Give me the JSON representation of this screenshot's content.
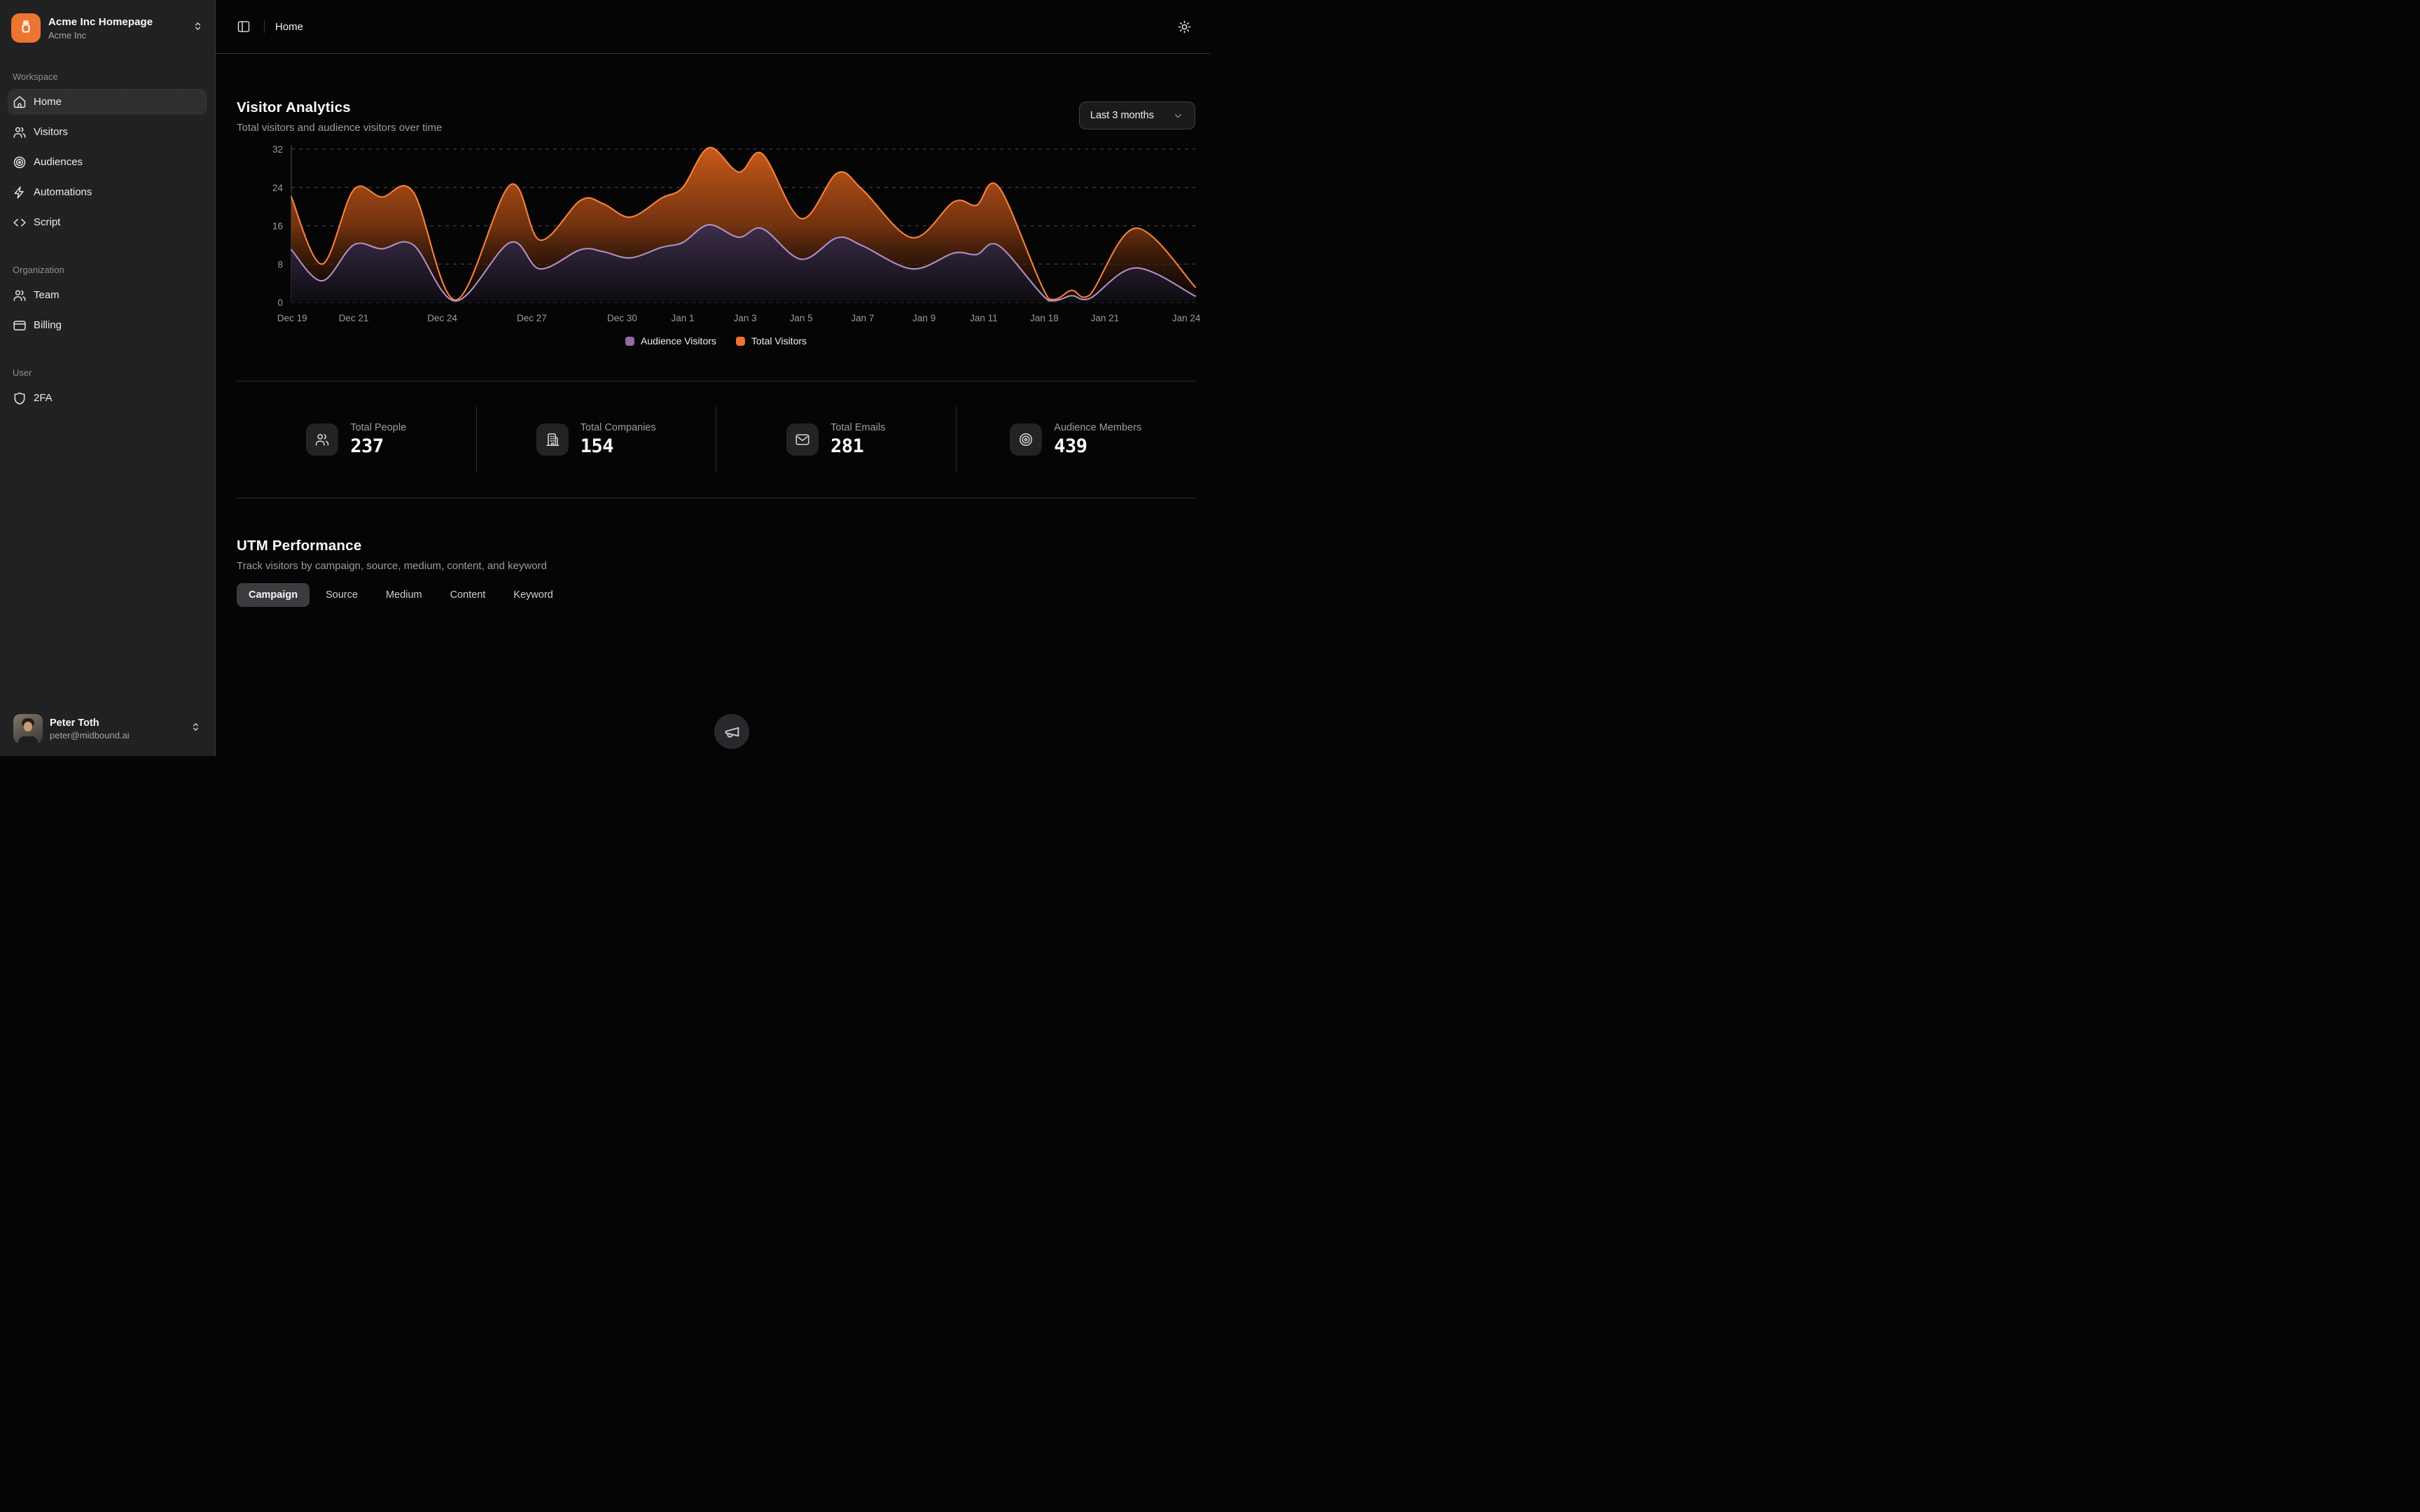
{
  "sidebar": {
    "workspace_name": "Acme Inc Homepage",
    "org_name": "Acme Inc",
    "logo_icon": "jar",
    "switcher_icon": "chevrons-up-down",
    "sections": [
      {
        "label": "Workspace",
        "items": [
          {
            "icon": "house",
            "label": "Home",
            "active": true
          },
          {
            "icon": "users",
            "label": "Visitors",
            "active": false
          },
          {
            "icon": "target",
            "label": "Audiences",
            "active": false
          },
          {
            "icon": "zap",
            "label": "Automations",
            "active": false
          },
          {
            "icon": "code",
            "label": "Script",
            "active": false
          }
        ]
      },
      {
        "label": "Organization",
        "items": [
          {
            "icon": "users",
            "label": "Team",
            "active": false
          },
          {
            "icon": "credit-card",
            "label": "Billing",
            "active": false
          }
        ]
      },
      {
        "label": "User",
        "items": [
          {
            "icon": "shield",
            "label": "2FA",
            "active": false
          }
        ]
      }
    ],
    "profile": {
      "name": "Peter Toth",
      "email": "peter@midbound.ai",
      "chevron_icon": "chevrons-up-down"
    }
  },
  "topbar": {
    "breadcrumb": "Home",
    "left_icon": "panel-left",
    "right_icon": "sun"
  },
  "analytics": {
    "title": "Visitor Analytics",
    "subtitle": "Total visitors and audience visitors over time",
    "range_selector": "Last 3 months",
    "range_chevron_icon": "chevron-down"
  },
  "chart_data": {
    "type": "area",
    "title": "Visitor Analytics",
    "xlabel": "",
    "ylabel": "",
    "ylim": [
      0,
      32
    ],
    "y_ticks": [
      0,
      8,
      16,
      24,
      32
    ],
    "grid": "dashed-horizontal",
    "legend_position": "bottom-center",
    "x_ticks": [
      {
        "label": "Dec 19",
        "f": 0.001
      },
      {
        "label": "Dec 21",
        "f": 0.069
      },
      {
        "label": "Dec 24",
        "f": 0.167
      },
      {
        "label": "Dec 27",
        "f": 0.266
      },
      {
        "label": "Dec 30",
        "f": 0.366
      },
      {
        "label": "Jan 1",
        "f": 0.433
      },
      {
        "label": "Jan 3",
        "f": 0.502
      },
      {
        "label": "Jan 5",
        "f": 0.564
      },
      {
        "label": "Jan 7",
        "f": 0.632
      },
      {
        "label": "Jan 9",
        "f": 0.7
      },
      {
        "label": "Jan 11",
        "f": 0.766
      },
      {
        "label": "Jan 18",
        "f": 0.833
      },
      {
        "label": "Jan 21",
        "f": 0.9
      },
      {
        "label": "Jan 24",
        "f": 0.99
      }
    ],
    "series": [
      {
        "name": "Total Visitors",
        "color": "#ed7331",
        "line": "#f9813c",
        "legend_index": 1,
        "points": [
          [
            0,
            22
          ],
          [
            0.034,
            8
          ],
          [
            0.069,
            23.5
          ],
          [
            0.1,
            22
          ],
          [
            0.135,
            23
          ],
          [
            0.182,
            0.5
          ],
          [
            0.242,
            24.5
          ],
          [
            0.275,
            13
          ],
          [
            0.32,
            21.3
          ],
          [
            0.345,
            20.6
          ],
          [
            0.375,
            17.8
          ],
          [
            0.41,
            21.8
          ],
          [
            0.433,
            24
          ],
          [
            0.462,
            32.3
          ],
          [
            0.495,
            27.2
          ],
          [
            0.521,
            31
          ],
          [
            0.564,
            17.5
          ],
          [
            0.604,
            27
          ],
          [
            0.632,
            23.5
          ],
          [
            0.687,
            13.5
          ],
          [
            0.733,
            21
          ],
          [
            0.758,
            20.3
          ],
          [
            0.783,
            24
          ],
          [
            0.838,
            0.7
          ],
          [
            0.863,
            2.5
          ],
          [
            0.883,
            1.5
          ],
          [
            0.934,
            15.5
          ],
          [
            1,
            3.2
          ]
        ]
      },
      {
        "name": "Audience Visitors",
        "color": "#96699f",
        "line": "#b18fc4",
        "legend_index": 0,
        "points": [
          [
            0,
            11
          ],
          [
            0.034,
            4.5
          ],
          [
            0.069,
            12
          ],
          [
            0.1,
            11.2
          ],
          [
            0.135,
            12
          ],
          [
            0.182,
            0.3
          ],
          [
            0.242,
            12.5
          ],
          [
            0.275,
            7
          ],
          [
            0.32,
            11
          ],
          [
            0.345,
            10.6
          ],
          [
            0.375,
            9.3
          ],
          [
            0.41,
            11.5
          ],
          [
            0.433,
            12.5
          ],
          [
            0.462,
            16.2
          ],
          [
            0.495,
            13.6
          ],
          [
            0.521,
            15.4
          ],
          [
            0.564,
            9
          ],
          [
            0.604,
            13.5
          ],
          [
            0.632,
            11.8
          ],
          [
            0.687,
            7
          ],
          [
            0.733,
            10.3
          ],
          [
            0.758,
            10
          ],
          [
            0.783,
            11.8
          ],
          [
            0.838,
            0.35
          ],
          [
            0.863,
            1.4
          ],
          [
            0.883,
            0.8
          ],
          [
            0.934,
            7.2
          ],
          [
            1,
            1.3
          ]
        ]
      }
    ]
  },
  "stats": {
    "items": [
      {
        "icon": "users",
        "label": "Total People",
        "value": "237"
      },
      {
        "icon": "building",
        "label": "Total Companies",
        "value": "154"
      },
      {
        "icon": "mail",
        "label": "Total Emails",
        "value": "281"
      },
      {
        "icon": "target",
        "label": "Audience Members",
        "value": "439"
      }
    ]
  },
  "utm": {
    "title": "UTM Performance",
    "subtitle": "Track visitors by campaign, source, medium, content, and keyword",
    "tabs": [
      "Campaign",
      "Source",
      "Medium",
      "Content",
      "Keyword"
    ],
    "active_tab": "Campaign"
  },
  "floating_button": {
    "icon": "megaphone"
  },
  "colors": {
    "brand_orange": "#ed7431",
    "sidebar_bg": "#201f21",
    "main_bg": "#050505",
    "border": "#333335",
    "active_pill": "#3a393d",
    "chart_total": "#ed7331",
    "chart_total_line": "#f9813c",
    "chart_audience": "#96699f",
    "chart_audience_line": "#b18fc4"
  }
}
